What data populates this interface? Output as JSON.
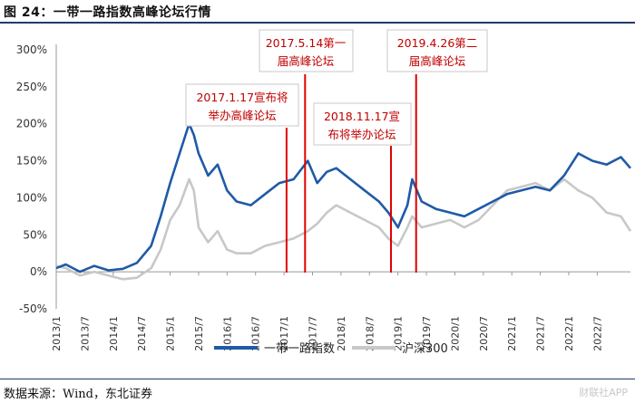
{
  "header": {
    "title": "图 24：一带一路指数高峰论坛行情"
  },
  "footer": {
    "source": "数据来源：Wind，东北证券",
    "watermark": "财联社APP"
  },
  "colors": {
    "series1": "#1f5aa6",
    "series2": "#c8c8c8",
    "event_line": "#e00000",
    "annotation": "#c00000"
  },
  "chart_data": {
    "type": "line",
    "title": "",
    "xlabel": "",
    "ylabel": "",
    "ylim": [
      -50,
      300
    ],
    "y_ticks": [
      "300%",
      "250%",
      "200%",
      "150%",
      "100%",
      "50%",
      "0%",
      "-50%"
    ],
    "y_tick_values": [
      300,
      250,
      200,
      150,
      100,
      50,
      0,
      -50
    ],
    "x_ticks": [
      "2013/1",
      "2013/7",
      "2014/1",
      "2014/7",
      "2015/1",
      "2015/7",
      "2016/1",
      "2016/7",
      "2017/1",
      "2017/7",
      "2018/1",
      "2018/7",
      "2019/1",
      "2019/7",
      "2020/1",
      "2020/7",
      "2021/1",
      "2021/7",
      "2022/1",
      "2022/7"
    ],
    "x_range": [
      "2013-01",
      "2023-02"
    ],
    "grid": false,
    "legend_position": "bottom",
    "series": [
      {
        "name": "一带一路指数",
        "x": [
          "2013-01",
          "2013-03",
          "2013-06",
          "2013-09",
          "2013-12",
          "2014-03",
          "2014-06",
          "2014-09",
          "2014-11",
          "2015-01",
          "2015-03",
          "2015-05",
          "2015-06",
          "2015-07",
          "2015-09",
          "2015-11",
          "2016-01",
          "2016-03",
          "2016-06",
          "2016-09",
          "2016-12",
          "2017-03",
          "2017-06",
          "2017-08",
          "2017-10",
          "2017-12",
          "2018-03",
          "2018-06",
          "2018-09",
          "2018-11",
          "2019-01",
          "2019-03",
          "2019-04",
          "2019-06",
          "2019-09",
          "2019-12",
          "2020-03",
          "2020-06",
          "2020-09",
          "2020-12",
          "2021-03",
          "2021-06",
          "2021-09",
          "2021-12",
          "2022-03",
          "2022-06",
          "2022-09",
          "2022-12",
          "2023-02"
        ],
        "values": [
          5,
          10,
          0,
          8,
          2,
          4,
          12,
          35,
          75,
          120,
          160,
          200,
          185,
          160,
          130,
          145,
          110,
          95,
          90,
          105,
          120,
          125,
          150,
          120,
          135,
          140,
          125,
          110,
          95,
          80,
          60,
          90,
          125,
          95,
          85,
          80,
          75,
          85,
          95,
          105,
          110,
          115,
          110,
          130,
          160,
          150,
          145,
          155,
          140
        ]
      },
      {
        "name": "沪深300",
        "x": [
          "2013-01",
          "2013-03",
          "2013-06",
          "2013-09",
          "2013-12",
          "2014-03",
          "2014-06",
          "2014-09",
          "2014-11",
          "2015-01",
          "2015-03",
          "2015-05",
          "2015-06",
          "2015-07",
          "2015-09",
          "2015-11",
          "2016-01",
          "2016-03",
          "2016-06",
          "2016-09",
          "2016-12",
          "2017-03",
          "2017-06",
          "2017-08",
          "2017-10",
          "2017-12",
          "2018-03",
          "2018-06",
          "2018-09",
          "2018-11",
          "2019-01",
          "2019-03",
          "2019-04",
          "2019-06",
          "2019-09",
          "2019-12",
          "2020-03",
          "2020-06",
          "2020-09",
          "2020-12",
          "2021-03",
          "2021-06",
          "2021-09",
          "2021-12",
          "2022-03",
          "2022-06",
          "2022-09",
          "2022-12",
          "2023-02"
        ],
        "values": [
          8,
          5,
          -5,
          0,
          -5,
          -10,
          -8,
          5,
          30,
          70,
          90,
          125,
          110,
          60,
          40,
          55,
          30,
          25,
          25,
          35,
          40,
          45,
          55,
          65,
          80,
          90,
          80,
          70,
          60,
          45,
          35,
          60,
          75,
          60,
          65,
          70,
          60,
          70,
          90,
          110,
          115,
          120,
          110,
          125,
          110,
          100,
          80,
          75,
          55
        ]
      }
    ],
    "events": [
      {
        "date": "2017-01-17",
        "label": "2017.1.17宣布将举办高峰论坛"
      },
      {
        "date": "2017-05-14",
        "label": "2017.5.14第一届高峰论坛"
      },
      {
        "date": "2018-11-17",
        "label": "2018.11.17宣布将举办论坛"
      },
      {
        "date": "2019-04-26",
        "label": "2019.4.26第二届高峰论坛"
      }
    ]
  },
  "annotations": [
    {
      "line1": "2017.1.17宣布将",
      "line2": "举办高峰论坛"
    },
    {
      "line1": "2017.5.14第一",
      "line2": "届高峰论坛"
    },
    {
      "line1": "2018.11.17宣",
      "line2": "布将举办论坛"
    },
    {
      "line1": "2019.4.26第二",
      "line2": "届高峰论坛"
    }
  ]
}
